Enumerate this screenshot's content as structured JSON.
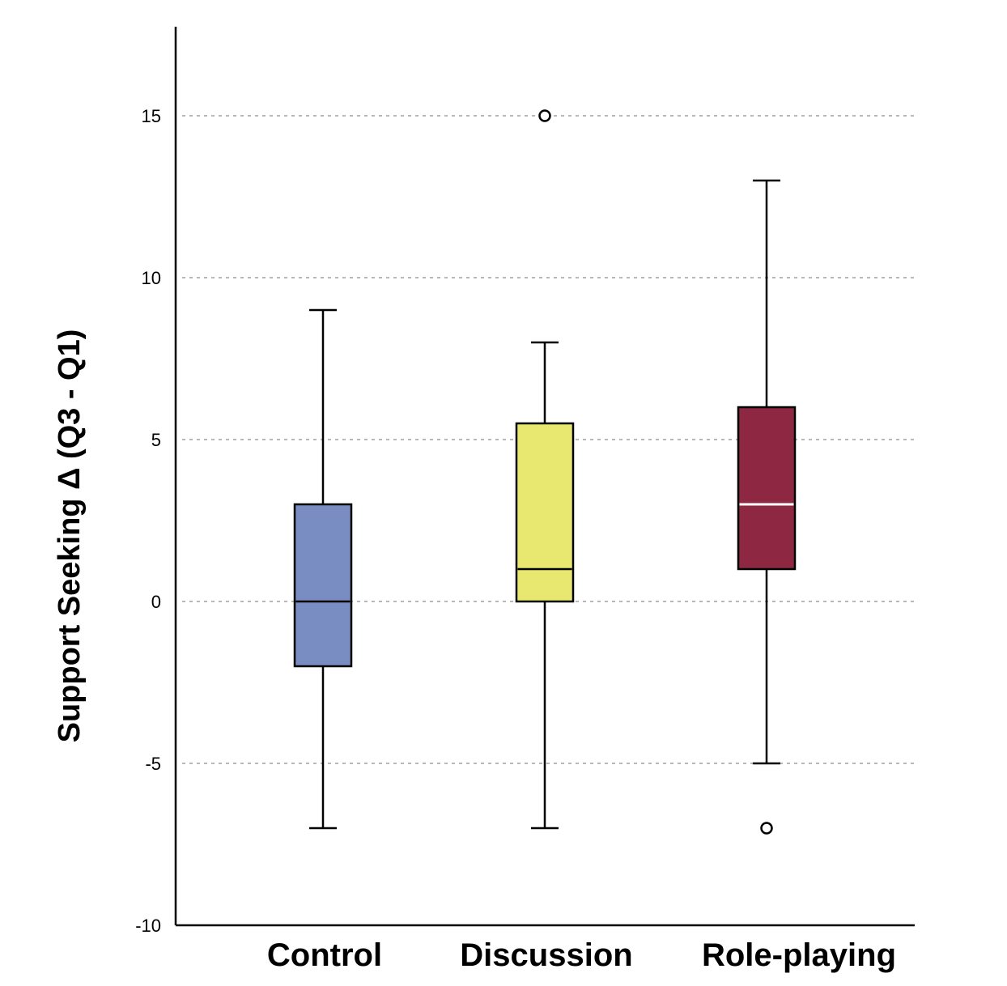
{
  "chart_data": {
    "type": "box",
    "title": "",
    "xlabel": "",
    "ylabel": "Support Seeking Δ (Q3 - Q1)",
    "ylim": [
      -10,
      17.7
    ],
    "yticks": [
      -10,
      -5,
      0,
      5,
      10,
      15
    ],
    "ytick_labels": [
      "-10",
      "-5",
      "0",
      "5",
      "10",
      "15"
    ],
    "grid": true,
    "categories": [
      "Control",
      "Discussion",
      "Role-playing"
    ],
    "boxes": [
      {
        "name": "Control",
        "whisker_low": -7,
        "q1": -2,
        "median": 0,
        "q3": 3,
        "whisker_high": 9,
        "outliers": [],
        "color": "#7a8dc2",
        "median_color": "#000000"
      },
      {
        "name": "Discussion",
        "whisker_low": -7,
        "q1": 0,
        "median": 1,
        "q3": 5.5,
        "whisker_high": 8,
        "outliers": [
          15
        ],
        "color": "#e8e870",
        "median_color": "#000000"
      },
      {
        "name": "Role-playing",
        "whisker_low": -5,
        "q1": 1,
        "median": 3,
        "q3": 6,
        "whisker_high": 13,
        "outliers": [
          -7
        ],
        "color": "#8e2842",
        "median_color": "#ffffff"
      }
    ]
  }
}
